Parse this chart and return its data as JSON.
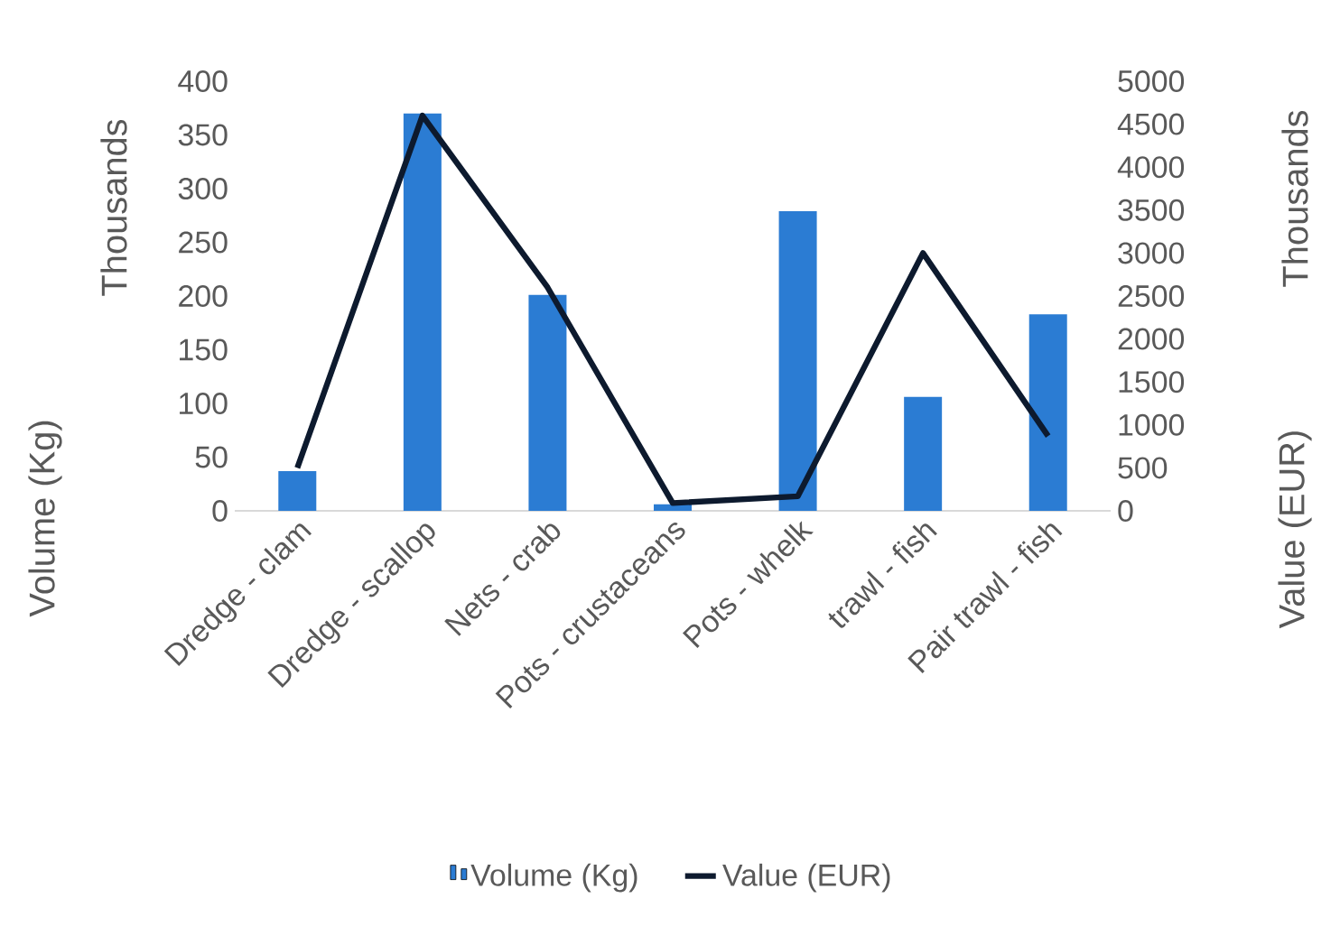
{
  "chart_data": {
    "type": "bar",
    "ylabel": "Volume (Kg)",
    "y2label": "Value (EUR)",
    "annotations": [
      "Thousands",
      "Thousands"
    ],
    "categories": [
      "Dredge - clam",
      "Dredge - scallop",
      "Nets - crab",
      "Pots - crustaceans",
      "Pots - whelk",
      "trawl - fish",
      "Pair trawl - fish"
    ],
    "series": [
      {
        "name": "Volume (Kg)",
        "color": "#2b7cd3",
        "values": [
          37,
          370,
          201,
          6,
          279,
          106,
          183
        ]
      },
      {
        "name": "Value (EUR)",
        "type": "line",
        "axis": "y2",
        "color": "#0d1a2e",
        "values": [
          500,
          4600,
          2600,
          90,
          170,
          3000,
          870
        ]
      }
    ],
    "ylim": [
      0,
      400
    ],
    "yticks": [
      0,
      50,
      100,
      150,
      200,
      250,
      300,
      350,
      400
    ],
    "y2lim": [
      0,
      5000
    ],
    "y2ticks": [
      0,
      500,
      1000,
      1500,
      2000,
      2500,
      3000,
      3500,
      4000,
      4500,
      5000
    ],
    "legend": "bottom"
  }
}
